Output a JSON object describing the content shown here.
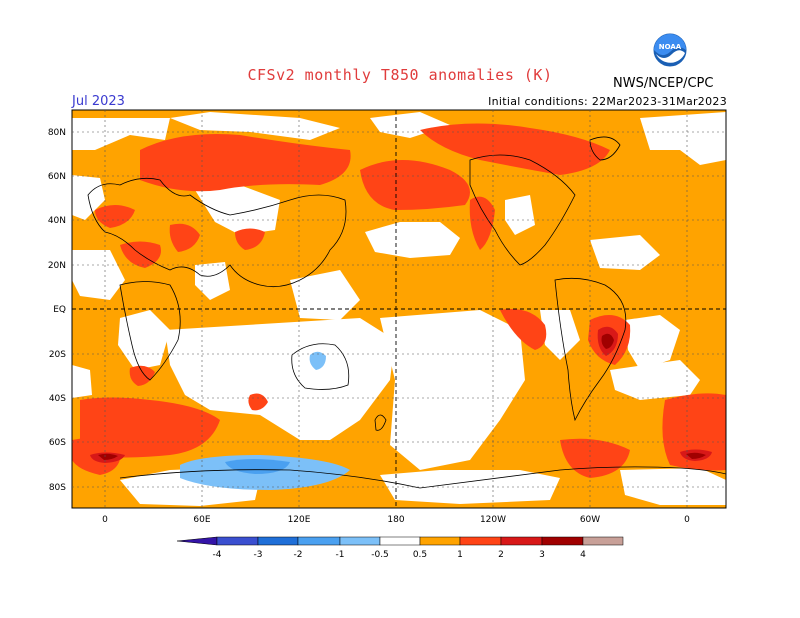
{
  "header": {
    "title": "CFSv2 monthly T850 anomalies (K)",
    "month": "Jul 2023",
    "initial_conditions": "Initial conditions: 22Mar2023-31Mar2023",
    "agency": "NWS/NCEP/CPC",
    "logo_text": "NOAA"
  },
  "map": {
    "lat_labels": [
      "80N",
      "60N",
      "40N",
      "20N",
      "EQ",
      "20S",
      "40S",
      "60S",
      "80S"
    ],
    "lon_labels": [
      "0",
      "60E",
      "120E",
      "180",
      "120W",
      "60W",
      "0"
    ]
  },
  "colorbar": {
    "ticks": [
      "-4",
      "-3",
      "-2",
      "-1",
      "-0.5",
      "0.5",
      "1",
      "2",
      "3",
      "4"
    ],
    "colors": [
      "#3414a8",
      "#3a4fd0",
      "#1f6fd8",
      "#4aa0f0",
      "#7cc0f8",
      "#ffffff",
      "#ffa300",
      "#ff4416",
      "#d81818",
      "#a00000",
      "#c8a098",
      "#8a4a3a"
    ]
  },
  "colors": {
    "weak_warm": "#ffa300",
    "moderate_warm": "#ff4416",
    "strong_warm": "#d81818",
    "very_strong_warm": "#a00000",
    "weak_cool": "#7cc0f8",
    "moderate_cool": "#4aa0f0"
  }
}
